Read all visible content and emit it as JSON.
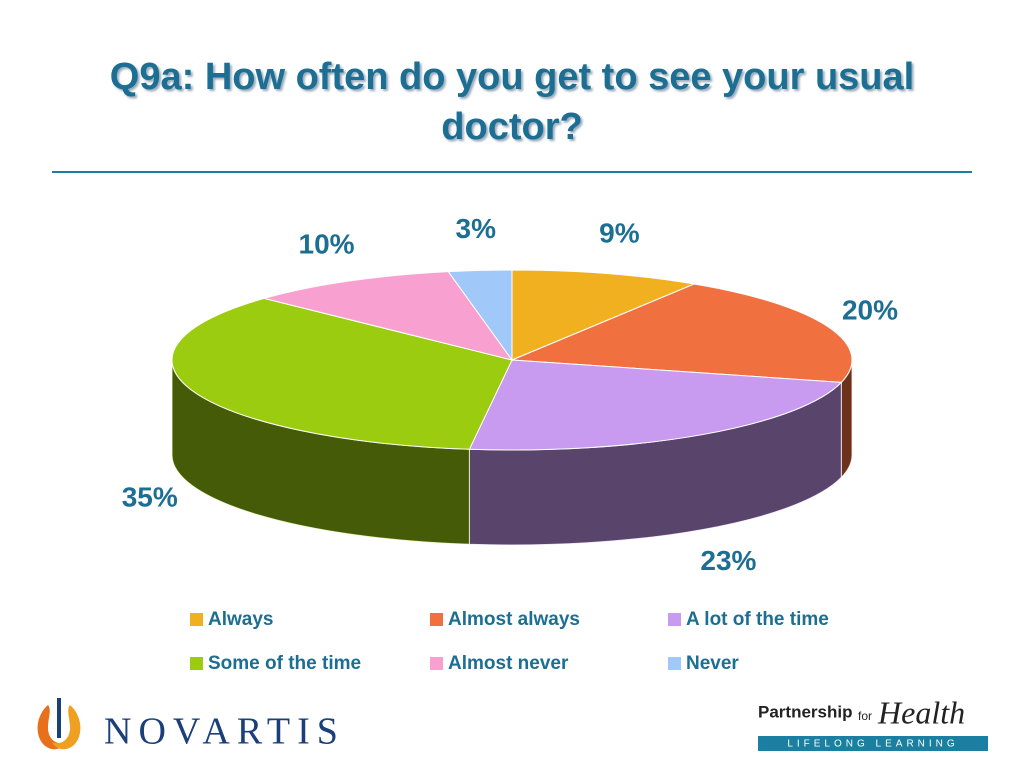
{
  "chart_data": {
    "type": "pie",
    "title": "Q9a: How often do you get to see your usual doctor?",
    "categories": [
      "Always",
      "Almost always",
      "A lot of the time",
      "Some of the time",
      "Almost never",
      "Never"
    ],
    "values": [
      9,
      20,
      23,
      35,
      10,
      3
    ],
    "value_labels": [
      "9%",
      "20%",
      "23%",
      "35%",
      "10%",
      "3%"
    ],
    "colors": [
      "#f0b020",
      "#f07040",
      "#c89af0",
      "#9ccc10",
      "#f8a0d0",
      "#a0c8f8"
    ],
    "legend": "bottom"
  },
  "footer": {
    "left_logo": "NOVARTIS",
    "right_logo": {
      "line1": "Partnership",
      "small": "for",
      "big": "Health",
      "band": "LIFELONG LEARNING"
    }
  }
}
